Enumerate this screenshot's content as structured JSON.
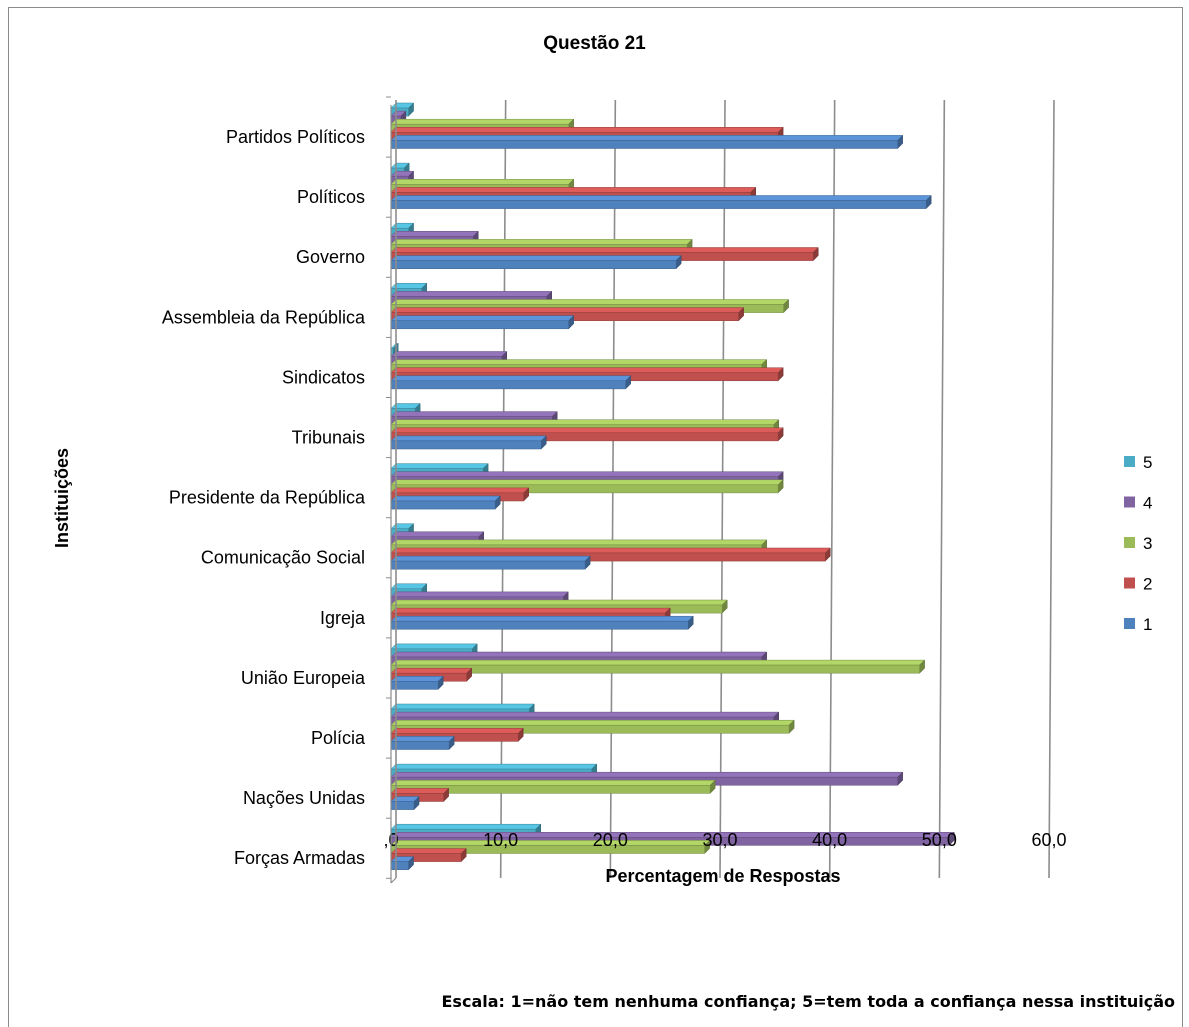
{
  "chart_data": {
    "type": "bar",
    "orientation": "horizontal",
    "title": "Questão 21",
    "xlabel": "Percentagem de Respostas",
    "ylabel": "Instituições",
    "xlim": [
      0,
      60
    ],
    "x_ticks": [
      ",0",
      "10,0",
      "20,0",
      "30,0",
      "40,0",
      "50,0",
      "60,0"
    ],
    "grid": true,
    "legend_position": "right",
    "footnote": "Escala: 1=não tem nenhuma confiança; 5=tem toda a confiança nessa instituição",
    "categories": [
      "Partidos Políticos",
      "Políticos",
      "Governo",
      "Assembleia da República",
      "Sindicatos",
      "Tribunais",
      "Presidente da República",
      "Comunicação Social",
      "Igreja",
      "União Europeia",
      "Polícia",
      "Nações Unidas",
      "Forças Armadas"
    ],
    "series": [
      {
        "name": "1",
        "color": "#4F81BD",
        "values": [
          46.2,
          48.8,
          26.0,
          16.2,
          21.4,
          13.7,
          9.5,
          17.7,
          27.1,
          4.3,
          5.3,
          2.1,
          1.6
        ]
      },
      {
        "name": "2",
        "color": "#C0504D",
        "values": [
          35.3,
          32.8,
          38.5,
          31.7,
          35.3,
          35.3,
          12.1,
          39.6,
          25.0,
          6.9,
          11.6,
          4.8,
          6.4
        ]
      },
      {
        "name": "3",
        "color": "#9BBB59",
        "values": [
          16.2,
          16.2,
          27.0,
          35.8,
          33.8,
          34.9,
          35.3,
          33.8,
          30.2,
          48.2,
          36.3,
          29.1,
          28.6
        ]
      },
      {
        "name": "4",
        "color": "#8064A2",
        "values": [
          0.9,
          1.6,
          7.5,
          14.2,
          10.1,
          14.7,
          35.3,
          8.0,
          15.7,
          33.8,
          34.9,
          46.2,
          50.9
        ]
      },
      {
        "name": "5",
        "color": "#4BACC6",
        "values": [
          1.6,
          1.2,
          1.6,
          2.8,
          0.2,
          2.2,
          8.4,
          1.6,
          2.8,
          7.4,
          12.6,
          18.3,
          13.2
        ]
      }
    ]
  }
}
